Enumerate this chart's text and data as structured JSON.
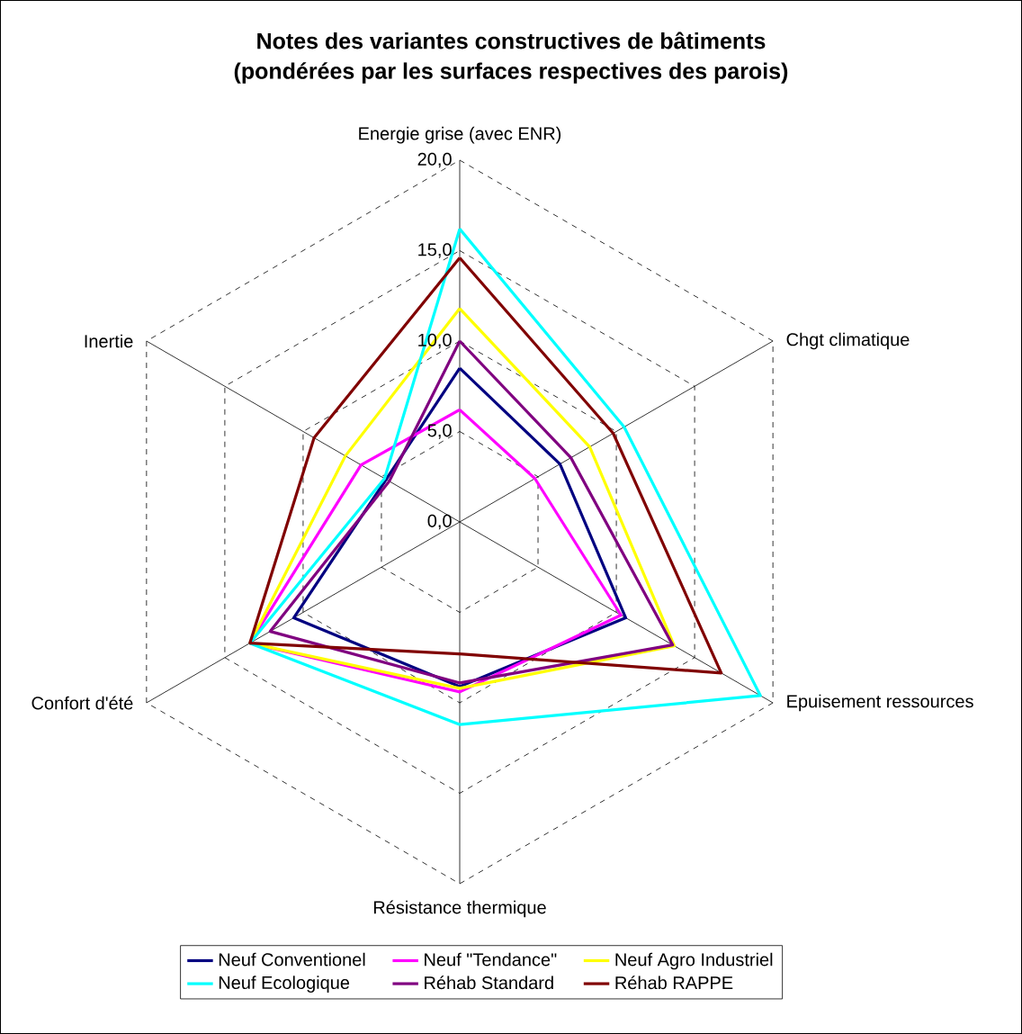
{
  "chart_data": {
    "type": "radar",
    "title": "Notes des variantes constructives de bâtiments",
    "subtitle": "(pondérées par les surfaces respectives des parois)",
    "categories": [
      "Energie grise (avec ENR)",
      "Chgt climatique",
      "Epuisement ressources",
      "Résistance thermique",
      "Confort d'été",
      "Inertie"
    ],
    "ylim": [
      0,
      20
    ],
    "yticks": [
      {
        "value": 0,
        "label": "0,0"
      },
      {
        "value": 5,
        "label": "5,0"
      },
      {
        "value": 10,
        "label": "10,0"
      },
      {
        "value": 15,
        "label": "15,0"
      },
      {
        "value": 20,
        "label": "20,0"
      }
    ],
    "grid": true,
    "legend": "bottom",
    "series": [
      {
        "name": "Neuf Conventionel",
        "color": "#000080",
        "values": [
          8.5,
          6.4,
          10.6,
          9.1,
          10.6,
          4.7
        ]
      },
      {
        "name": "Neuf \"Tendance\"",
        "color": "#ff00ff",
        "values": [
          6.2,
          4.8,
          10.3,
          9.4,
          13.4,
          6.3
        ]
      },
      {
        "name": "Neuf Agro Industriel",
        "color": "#ffff00",
        "values": [
          11.8,
          8.3,
          13.7,
          9.2,
          13.4,
          7.3
        ]
      },
      {
        "name": "Neuf Ecologique",
        "color": "#00ffff",
        "values": [
          16.2,
          10.5,
          19.2,
          11.2,
          13.4,
          4.8
        ]
      },
      {
        "name": "Réhab Standard",
        "color": "#800080",
        "values": [
          10.0,
          7.1,
          13.6,
          8.9,
          12.1,
          4.5
        ]
      },
      {
        "name": "Réhab RAPPE",
        "color": "#800000",
        "values": [
          14.6,
          9.8,
          16.7,
          7.3,
          13.4,
          9.3
        ]
      }
    ]
  }
}
